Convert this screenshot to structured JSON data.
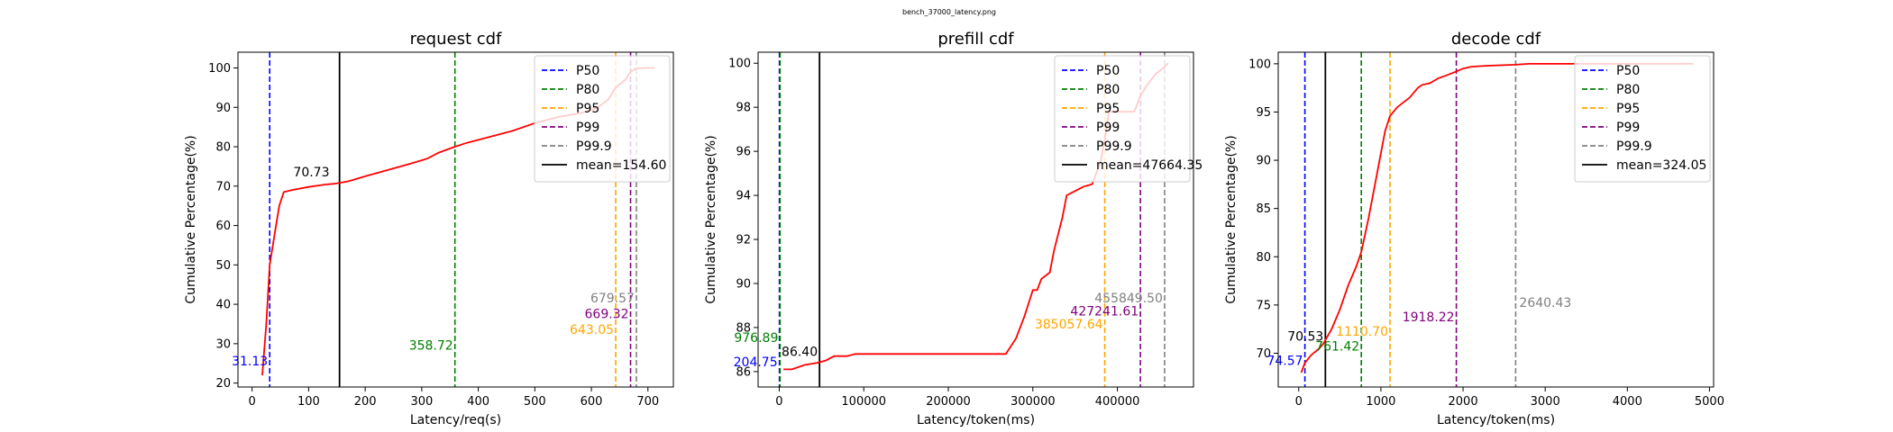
{
  "figure_title": "bench_37000_latency.png",
  "legend_labels": [
    "P50",
    "P80",
    "P95",
    "P99",
    "P99.9"
  ],
  "colors": {
    "P50": "#0000ff",
    "P80": "#008000",
    "P95": "#ffa500",
    "P99": "#800080",
    "P99.9": "#808080",
    "mean": "#000000",
    "curve": "#ff0000"
  },
  "chart_data": [
    {
      "type": "line",
      "title": "request cdf",
      "xlabel": "Latency/req(s)",
      "ylabel": "Cumulative Percentage(%)",
      "xlim": [
        -25,
        745
      ],
      "ylim": [
        19,
        104
      ],
      "xticks": [
        0,
        100,
        200,
        300,
        400,
        500,
        600,
        700
      ],
      "xtick_labels": [
        "0",
        "100",
        "200",
        "300",
        "400",
        "500",
        "600",
        "700"
      ],
      "yticks": [
        20,
        30,
        40,
        50,
        60,
        70,
        80,
        90,
        100
      ],
      "ytick_labels": [
        "20",
        "30",
        "40",
        "50",
        "60",
        "70",
        "80",
        "90",
        "100"
      ],
      "series": [
        {
          "x": [
            18,
            25,
            31.13,
            40,
            48,
            56,
            70,
            100,
            130,
            145,
            170,
            200,
            220,
            250,
            280,
            310,
            330,
            358.72,
            380,
            420,
            460,
            500,
            540,
            580,
            610,
            630,
            643.05,
            660,
            669.32,
            679.57,
            700,
            712
          ],
          "y": [
            22,
            35,
            50,
            58,
            65,
            68.5,
            69,
            69.8,
            70.4,
            70.6,
            71.2,
            72.5,
            73.3,
            74.5,
            75.7,
            77,
            78.5,
            80,
            81,
            82.5,
            84,
            86,
            87.5,
            88.5,
            89.8,
            92,
            95,
            97,
            99,
            99.9,
            100,
            100
          ]
        }
      ],
      "percentiles": {
        "P50": 31.13,
        "P80": 358.72,
        "P95": 643.05,
        "P99": 669.32,
        "P99.9": 679.57
      },
      "mean": 154.6,
      "annotations": [
        {
          "text": "31.13",
          "x": 31.13,
          "y": 24.5,
          "color": "P50",
          "anchor": "end"
        },
        {
          "text": "358.72",
          "x": 358.72,
          "y": 28.5,
          "color": "P80",
          "anchor": "end"
        },
        {
          "text": "643.05",
          "x": 643.05,
          "y": 32.5,
          "color": "P95",
          "anchor": "end"
        },
        {
          "text": "669.32",
          "x": 669.32,
          "y": 36.5,
          "color": "P99",
          "anchor": "end"
        },
        {
          "text": "679.57",
          "x": 679.57,
          "y": 40.5,
          "color": "P99.9",
          "anchor": "end"
        },
        {
          "text": "70.73",
          "x": 140,
          "y": 72.5,
          "color": "mean",
          "anchor": "end"
        }
      ],
      "legend_mean": "mean=154.60",
      "legend_position": "top-right"
    },
    {
      "type": "line",
      "title": "prefill cdf",
      "xlabel": "Latency/token(ms)",
      "ylabel": "Cumulative Percentage(%)",
      "xlim": [
        -25000,
        490000
      ],
      "ylim": [
        85.3,
        100.5
      ],
      "xticks": [
        0,
        100000,
        200000,
        300000,
        400000
      ],
      "xtick_labels": [
        "0",
        "100000",
        "200000",
        "300000",
        "400000"
      ],
      "yticks": [
        86,
        88,
        90,
        92,
        94,
        96,
        98,
        100
      ],
      "ytick_labels": [
        "86",
        "88",
        "90",
        "92",
        "94",
        "96",
        "98",
        "100"
      ],
      "series": [
        {
          "x": [
            5000,
            15000,
            30000,
            45000,
            55000,
            65000,
            80000,
            90000,
            120000,
            180000,
            240000,
            268000,
            280000,
            290000,
            300000,
            305000,
            310000,
            320000,
            325000,
            335000,
            340000,
            350000,
            360000,
            370000,
            375000,
            380000,
            385000,
            390000,
            400000,
            410000,
            420000,
            427000,
            435000,
            445000,
            455000,
            460000
          ],
          "y": [
            86.1,
            86.1,
            86.3,
            86.4,
            86.5,
            86.7,
            86.7,
            86.8,
            86.8,
            86.8,
            86.8,
            86.8,
            87.5,
            88.5,
            89.7,
            89.7,
            90.2,
            90.5,
            91.5,
            93,
            94,
            94.2,
            94.4,
            94.5,
            95,
            95.5,
            96.5,
            97.8,
            97.8,
            97.8,
            97.8,
            98.5,
            99,
            99.5,
            99.8,
            100
          ]
        }
      ],
      "percentiles": {
        "P50": 204.75,
        "P80": 976.89,
        "P95": 385057.64,
        "P99": 427241.61,
        "P99.9": 455849.5
      },
      "mean": 47664.35,
      "annotations": [
        {
          "text": "204.75",
          "x": 204.75,
          "y": 86.25,
          "color": "P50",
          "anchor": "end"
        },
        {
          "text": "976.89",
          "x": 976.89,
          "y": 87.35,
          "color": "P80",
          "anchor": "end"
        },
        {
          "text": "385057.64",
          "x": 385057.64,
          "y": 87.95,
          "color": "P95",
          "anchor": "end"
        },
        {
          "text": "427241.61",
          "x": 427241.61,
          "y": 88.55,
          "color": "P99",
          "anchor": "end"
        },
        {
          "text": "455849.50",
          "x": 455849.5,
          "y": 89.15,
          "color": "P99.9",
          "anchor": "end"
        },
        {
          "text": "86.40",
          "x": 47664.35,
          "y": 86.7,
          "color": "mean",
          "anchor": "end"
        }
      ],
      "legend_mean": "mean=47664.35",
      "legend_position": "top-right"
    },
    {
      "type": "line",
      "title": "decode cdf",
      "xlabel": "Latency/token(ms)",
      "ylabel": "Cumulative Percentage(%)",
      "xlim": [
        -250,
        5050
      ],
      "ylim": [
        66.5,
        101.2
      ],
      "xticks": [
        0,
        1000,
        2000,
        3000,
        4000,
        5000
      ],
      "xtick_labels": [
        "0",
        "1000",
        "2000",
        "3000",
        "4000",
        "5000"
      ],
      "yticks": [
        70,
        75,
        80,
        85,
        90,
        95,
        100
      ],
      "ytick_labels": [
        "70",
        "75",
        "80",
        "85",
        "90",
        "95",
        "100"
      ],
      "series": [
        {
          "x": [
            30,
            74.57,
            150,
            250,
            300,
            400,
            500,
            600,
            700,
            761.42,
            850,
            950,
            1050,
            1110.7,
            1200,
            1350,
            1450,
            1500,
            1600,
            1700,
            1800,
            1918.22,
            2000,
            2100,
            2300,
            2640.43,
            2800,
            3000,
            3500,
            4000,
            4500,
            4800
          ],
          "y": [
            68,
            69,
            69.8,
            70.5,
            71,
            72.5,
            74.5,
            77,
            79,
            80.5,
            84,
            88.5,
            93,
            94.6,
            95.5,
            96.5,
            97.5,
            97.8,
            98,
            98.5,
            98.8,
            99.2,
            99.5,
            99.7,
            99.8,
            99.9,
            100,
            100,
            100,
            100,
            100,
            100
          ]
        }
      ],
      "percentiles": {
        "P50": 74.57,
        "P80": 761.42,
        "P95": 1110.7,
        "P99": 1918.22,
        "P99.9": 2640.43
      },
      "mean": 324.05,
      "annotations": [
        {
          "text": "74.57",
          "x": 74.57,
          "y": 68.8,
          "color": "P50",
          "anchor": "end"
        },
        {
          "text": "761.42",
          "x": 761.42,
          "y": 70.3,
          "color": "P80",
          "anchor": "end"
        },
        {
          "text": "1110.70",
          "x": 1110.7,
          "y": 71.8,
          "color": "P95",
          "anchor": "end"
        },
        {
          "text": "1918.22",
          "x": 1918.22,
          "y": 73.3,
          "color": "P99",
          "anchor": "end"
        },
        {
          "text": "2640.43",
          "x": 2640.43,
          "y": 74.8,
          "color": "P99.9",
          "anchor": "start"
        },
        {
          "text": "70.53",
          "x": 324.05,
          "y": 71.3,
          "color": "mean",
          "anchor": "end"
        }
      ],
      "legend_mean": "mean=324.05",
      "legend_position": "top-right"
    }
  ]
}
